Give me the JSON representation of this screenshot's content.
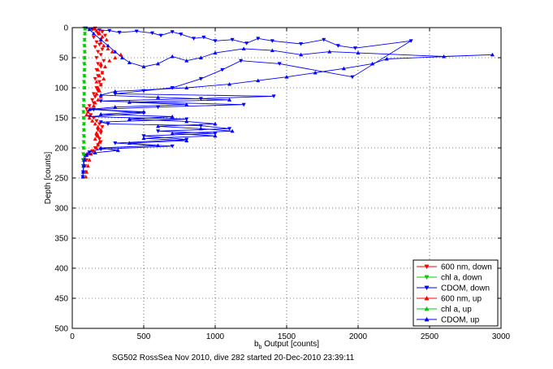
{
  "chart_data": {
    "type": "scatter",
    "title": "",
    "caption": "SG502 RossSea Nov 2010, dive 282 started 20-Dec-2010 23:39:11",
    "xlabel": "b",
    "xlabel_sub": "b",
    "xlabel_rest": " Output [counts]",
    "ylabel": "Depth [counts]",
    "xlim": [
      0,
      3000
    ],
    "ylim": [
      0,
      500
    ],
    "y_reversed": true,
    "grid": true,
    "legend_position": "bottom-right",
    "x_ticks": [
      0,
      500,
      1000,
      1500,
      2000,
      2500,
      3000
    ],
    "y_ticks": [
      0,
      50,
      100,
      150,
      200,
      250,
      300,
      350,
      400,
      450,
      500
    ],
    "series": [
      {
        "name": "600 nm, down",
        "color": "#ff0000",
        "marker": "triangle-down",
        "line": false,
        "points": [
          [
            160,
            1
          ],
          [
            190,
            4
          ],
          [
            210,
            7
          ],
          [
            180,
            10
          ],
          [
            230,
            13
          ],
          [
            150,
            16
          ],
          [
            200,
            20
          ],
          [
            170,
            24
          ],
          [
            190,
            28
          ],
          [
            160,
            32
          ],
          [
            210,
            36
          ],
          [
            180,
            40
          ],
          [
            200,
            45
          ],
          [
            170,
            50
          ],
          [
            220,
            55
          ],
          [
            180,
            60
          ],
          [
            200,
            65
          ],
          [
            170,
            70
          ],
          [
            210,
            75
          ],
          [
            180,
            80
          ],
          [
            160,
            85
          ],
          [
            190,
            90
          ],
          [
            200,
            95
          ],
          [
            170,
            100
          ],
          [
            180,
            105
          ],
          [
            150,
            110
          ],
          [
            160,
            115
          ],
          [
            140,
            120
          ],
          [
            150,
            125
          ],
          [
            120,
            130
          ],
          [
            100,
            135
          ],
          [
            110,
            140
          ],
          [
            130,
            145
          ],
          [
            150,
            150
          ],
          [
            170,
            155
          ],
          [
            190,
            160
          ],
          [
            210,
            165
          ],
          [
            180,
            170
          ],
          [
            200,
            175
          ],
          [
            170,
            180
          ],
          [
            190,
            185
          ],
          [
            200,
            190
          ],
          [
            180,
            195
          ],
          [
            160,
            200
          ],
          [
            140,
            205
          ],
          [
            110,
            210
          ],
          [
            100,
            220
          ],
          [
            90,
            230
          ],
          [
            95,
            240
          ]
        ]
      },
      {
        "name": "chl a, down",
        "color": "#00cc00",
        "marker": "triangle-down",
        "line": false,
        "points": [
          [
            85,
            1
          ],
          [
            88,
            10
          ],
          [
            86,
            20
          ],
          [
            84,
            30
          ],
          [
            87,
            40
          ],
          [
            85,
            50
          ],
          [
            83,
            60
          ],
          [
            86,
            70
          ],
          [
            84,
            80
          ],
          [
            82,
            90
          ],
          [
            85,
            100
          ],
          [
            83,
            110
          ],
          [
            80,
            120
          ],
          [
            79,
            130
          ],
          [
            78,
            140
          ],
          [
            80,
            150
          ],
          [
            82,
            160
          ],
          [
            81,
            170
          ],
          [
            80,
            180
          ],
          [
            79,
            190
          ],
          [
            78,
            200
          ],
          [
            77,
            210
          ],
          [
            76,
            220
          ],
          [
            77,
            230
          ],
          [
            76,
            240
          ],
          [
            75,
            248
          ]
        ]
      },
      {
        "name": "CDOM, down",
        "color": "#0000ff",
        "marker": "triangle-down",
        "line": true,
        "points": [
          [
            95,
            1
          ],
          [
            140,
            3
          ],
          [
            260,
            5
          ],
          [
            330,
            8
          ],
          [
            450,
            6
          ],
          [
            560,
            9
          ],
          [
            620,
            13
          ],
          [
            700,
            7
          ],
          [
            760,
            11
          ],
          [
            850,
            18
          ],
          [
            920,
            16
          ],
          [
            1000,
            22
          ],
          [
            1120,
            20
          ],
          [
            1220,
            26
          ],
          [
            1300,
            18
          ],
          [
            1400,
            22
          ],
          [
            1600,
            27
          ],
          [
            1760,
            20
          ],
          [
            1860,
            30
          ],
          [
            1980,
            34
          ],
          [
            2370,
            22
          ],
          [
            1960,
            82
          ],
          [
            1450,
            60
          ],
          [
            1180,
            55
          ],
          [
            1050,
            70
          ],
          [
            900,
            85
          ],
          [
            700,
            100
          ],
          [
            500,
            105
          ],
          [
            300,
            110
          ],
          [
            1410,
            114
          ],
          [
            900,
            118
          ],
          [
            200,
            122
          ],
          [
            1200,
            128
          ],
          [
            600,
            132
          ],
          [
            150,
            136
          ],
          [
            500,
            142
          ],
          [
            120,
            148
          ],
          [
            800,
            152
          ],
          [
            200,
            157
          ],
          [
            250,
            160
          ],
          [
            900,
            163
          ],
          [
            1100,
            168
          ],
          [
            600,
            172
          ],
          [
            1000,
            176
          ],
          [
            500,
            180
          ],
          [
            800,
            186
          ],
          [
            300,
            192
          ],
          [
            700,
            197
          ],
          [
            200,
            202
          ],
          [
            120,
            207
          ],
          [
            85,
            212
          ],
          [
            80,
            220
          ],
          [
            78,
            230
          ],
          [
            76,
            240
          ],
          [
            74,
            248
          ]
        ]
      },
      {
        "name": "600 nm, up",
        "color": "#ff0000",
        "marker": "triangle-up",
        "line": false,
        "points": [
          [
            95,
            248
          ],
          [
            100,
            240
          ],
          [
            110,
            230
          ],
          [
            120,
            220
          ],
          [
            130,
            210
          ],
          [
            150,
            205
          ],
          [
            170,
            200
          ],
          [
            180,
            195
          ],
          [
            190,
            190
          ],
          [
            160,
            185
          ],
          [
            180,
            180
          ],
          [
            170,
            175
          ],
          [
            200,
            170
          ],
          [
            180,
            165
          ],
          [
            160,
            160
          ],
          [
            140,
            155
          ],
          [
            120,
            150
          ],
          [
            100,
            145
          ],
          [
            110,
            140
          ],
          [
            130,
            135
          ],
          [
            150,
            130
          ],
          [
            160,
            125
          ],
          [
            180,
            120
          ],
          [
            200,
            115
          ],
          [
            170,
            110
          ],
          [
            190,
            105
          ],
          [
            180,
            100
          ],
          [
            200,
            95
          ],
          [
            170,
            90
          ],
          [
            220,
            85
          ],
          [
            190,
            80
          ],
          [
            210,
            75
          ],
          [
            180,
            70
          ],
          [
            230,
            65
          ],
          [
            200,
            60
          ],
          [
            260,
            55
          ],
          [
            300,
            50
          ],
          [
            340,
            45
          ],
          [
            280,
            40
          ],
          [
            250,
            35
          ],
          [
            220,
            30
          ],
          [
            200,
            25
          ],
          [
            240,
            20
          ],
          [
            210,
            15
          ],
          [
            190,
            10
          ],
          [
            170,
            5
          ],
          [
            150,
            2
          ]
        ]
      },
      {
        "name": "chl a, up",
        "color": "#00cc00",
        "marker": "triangle-up",
        "line": false,
        "points": [
          [
            76,
            248
          ],
          [
            77,
            240
          ],
          [
            78,
            230
          ],
          [
            79,
            220
          ],
          [
            80,
            210
          ],
          [
            81,
            200
          ],
          [
            82,
            190
          ],
          [
            83,
            180
          ],
          [
            82,
            170
          ],
          [
            81,
            160
          ],
          [
            80,
            150
          ],
          [
            79,
            140
          ],
          [
            80,
            130
          ],
          [
            82,
            120
          ],
          [
            84,
            110
          ],
          [
            85,
            100
          ],
          [
            84,
            90
          ],
          [
            86,
            80
          ],
          [
            85,
            70
          ],
          [
            87,
            60
          ],
          [
            86,
            50
          ],
          [
            88,
            40
          ],
          [
            87,
            30
          ],
          [
            86,
            20
          ],
          [
            88,
            10
          ],
          [
            89,
            2
          ]
        ]
      },
      {
        "name": "CDOM, up",
        "color": "#0000ff",
        "marker": "triangle-up",
        "line": true,
        "points": [
          [
            74,
            248
          ],
          [
            76,
            240
          ],
          [
            80,
            230
          ],
          [
            85,
            220
          ],
          [
            100,
            212
          ],
          [
            160,
            208
          ],
          [
            320,
            204
          ],
          [
            200,
            200
          ],
          [
            600,
            196
          ],
          [
            400,
            192
          ],
          [
            800,
            188
          ],
          [
            500,
            184
          ],
          [
            1000,
            180
          ],
          [
            700,
            176
          ],
          [
            1120,
            172
          ],
          [
            900,
            168
          ],
          [
            600,
            164
          ],
          [
            1000,
            160
          ],
          [
            800,
            156
          ],
          [
            400,
            152
          ],
          [
            700,
            148
          ],
          [
            200,
            144
          ],
          [
            500,
            140
          ],
          [
            120,
            136
          ],
          [
            300,
            132
          ],
          [
            800,
            128
          ],
          [
            400,
            124
          ],
          [
            1100,
            120
          ],
          [
            600,
            116
          ],
          [
            200,
            112
          ],
          [
            300,
            106
          ],
          [
            800,
            100
          ],
          [
            1100,
            94
          ],
          [
            1300,
            88
          ],
          [
            1500,
            82
          ],
          [
            1700,
            75
          ],
          [
            1900,
            68
          ],
          [
            2100,
            60
          ],
          [
            2200,
            52
          ],
          [
            2940,
            45
          ],
          [
            2600,
            48
          ],
          [
            2000,
            42
          ],
          [
            1800,
            40
          ],
          [
            1600,
            45
          ],
          [
            1400,
            38
          ],
          [
            1200,
            35
          ],
          [
            1000,
            42
          ],
          [
            900,
            50
          ],
          [
            800,
            55
          ],
          [
            700,
            48
          ],
          [
            600,
            60
          ],
          [
            500,
            65
          ],
          [
            400,
            58
          ],
          [
            350,
            50
          ],
          [
            300,
            40
          ],
          [
            250,
            30
          ],
          [
            200,
            20
          ],
          [
            150,
            10
          ],
          [
            120,
            3
          ]
        ]
      }
    ]
  }
}
